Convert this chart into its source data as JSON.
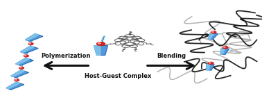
{
  "background_color": "#ffffff",
  "arrow_color": "#111111",
  "text_color": "#111111",
  "label_left": "Polymerization",
  "label_right": "Blending",
  "label_center": "Host-Guest Complex",
  "blue_dark": "#2266aa",
  "blue_mid": "#4499cc",
  "blue_light": "#88ccee",
  "blue_fill": "#5599dd",
  "red_color": "#cc2222",
  "figsize": [
    3.78,
    1.51
  ],
  "dpi": 100
}
